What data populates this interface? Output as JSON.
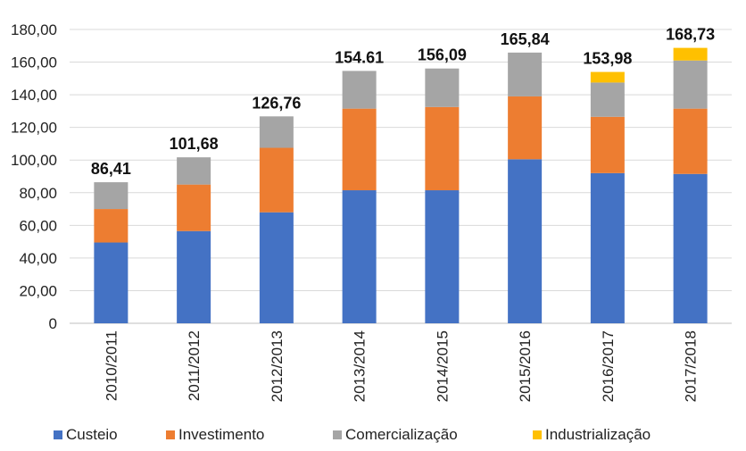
{
  "chart_data": {
    "type": "bar",
    "stacked": true,
    "categories": [
      "2010/2011",
      "2011/2012",
      "2012/2013",
      "2013/2014",
      "2014/2015",
      "2015/2016",
      "2016/2017",
      "2017/2018"
    ],
    "series": [
      {
        "name": "Custeio",
        "color": "#4472c4",
        "values": [
          49.5,
          56.5,
          68.0,
          81.5,
          81.5,
          100.5,
          92.0,
          91.5
        ]
      },
      {
        "name": "Investimento",
        "color": "#ed7d31",
        "values": [
          20.5,
          28.5,
          39.5,
          50.0,
          51.0,
          38.5,
          34.5,
          40.0
        ]
      },
      {
        "name": "Comercialização",
        "color": "#a5a5a5",
        "values": [
          16.41,
          16.68,
          19.26,
          23.11,
          23.59,
          26.84,
          21.0,
          29.5
        ]
      },
      {
        "name": "Industrialização",
        "color": "#ffc000",
        "values": [
          0,
          0,
          0,
          0,
          0,
          0,
          6.48,
          7.73
        ]
      }
    ],
    "totals": [
      "86,41",
      "101,68",
      "126,76",
      "154.61",
      "156,09",
      "165,84",
      "153,98",
      "168,73"
    ],
    "ylim": [
      0,
      180
    ],
    "yticks": [
      {
        "value": 0,
        "label": "0"
      },
      {
        "value": 20,
        "label": "20,00"
      },
      {
        "value": 40,
        "label": "40,00"
      },
      {
        "value": 60,
        "label": "60,00"
      },
      {
        "value": 80,
        "label": "80,00"
      },
      {
        "value": 100,
        "label": "100,00"
      },
      {
        "value": 120,
        "label": "120,00"
      },
      {
        "value": 140,
        "label": "140,00"
      },
      {
        "value": 160,
        "label": "160,00"
      },
      {
        "value": 180,
        "label": "180,00"
      }
    ],
    "grid": true,
    "legend_position": "bottom",
    "title": "",
    "xlabel": "",
    "ylabel": ""
  }
}
